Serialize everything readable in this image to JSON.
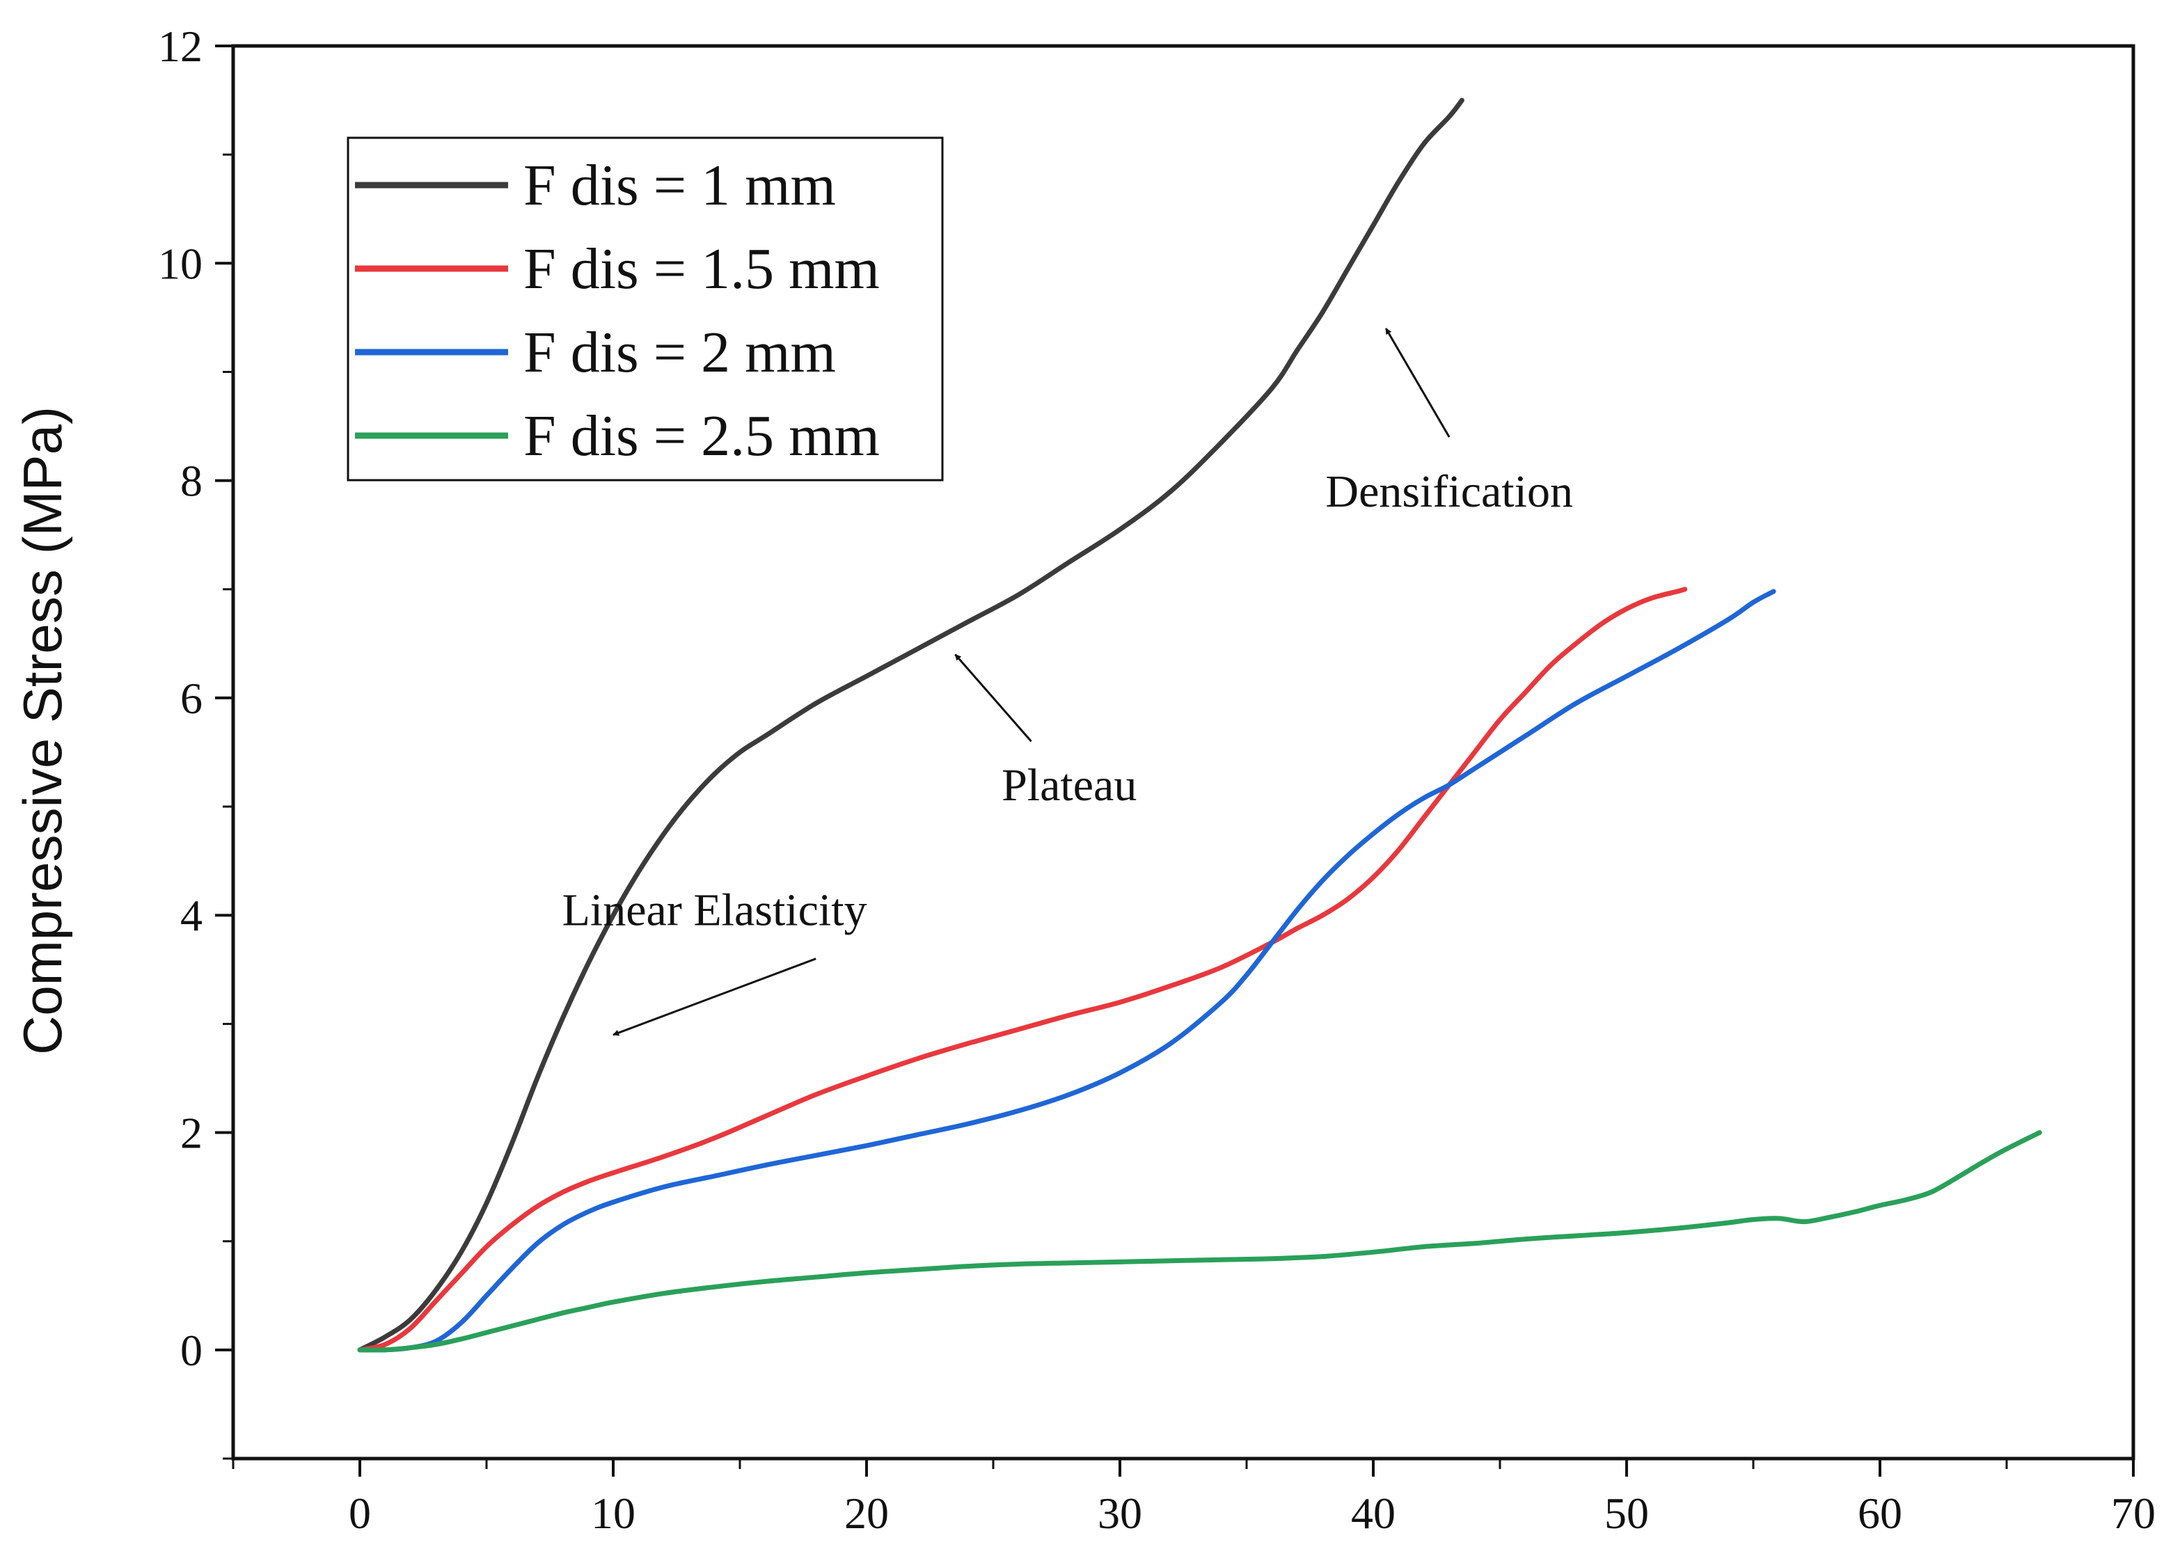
{
  "chart_data": {
    "type": "line",
    "title": "",
    "xlabel": "",
    "ylabel": "Compressive Stress (MPa)",
    "xlim": [
      -5,
      70
    ],
    "ylim": [
      -1,
      12
    ],
    "xticks": [
      0,
      10,
      20,
      30,
      40,
      50,
      60,
      70
    ],
    "yticks": [
      0,
      2,
      4,
      6,
      8,
      10,
      12
    ],
    "grid": false,
    "legend_position": "top-left",
    "series": [
      {
        "name": "F dis = 1 mm",
        "color": "#3b3b3b",
        "x": [
          0,
          1,
          2,
          3,
          4,
          5,
          6,
          7,
          8,
          9,
          10,
          11,
          12,
          13,
          14,
          15,
          16,
          18,
          20,
          22,
          24,
          26,
          28,
          30,
          32,
          34,
          36,
          37,
          38,
          39,
          40,
          41,
          42,
          43,
          43.5
        ],
        "y": [
          0,
          0.12,
          0.28,
          0.55,
          0.9,
          1.35,
          1.9,
          2.5,
          3.05,
          3.55,
          4.0,
          4.4,
          4.75,
          5.05,
          5.3,
          5.5,
          5.65,
          5.95,
          6.2,
          6.45,
          6.7,
          6.95,
          7.25,
          7.55,
          7.9,
          8.35,
          8.85,
          9.2,
          9.55,
          9.95,
          10.35,
          10.75,
          11.1,
          11.35,
          11.5
        ]
      },
      {
        "name": "F dis = 1.5 mm",
        "color": "#e8383d",
        "x": [
          0,
          1,
          2,
          3,
          4,
          5,
          6,
          7,
          8,
          9,
          10,
          12,
          14,
          16,
          18,
          20,
          22,
          24,
          26,
          28,
          30,
          32,
          34,
          36,
          37,
          38,
          39,
          40,
          41,
          42,
          43,
          44,
          45,
          46,
          47,
          48,
          49,
          50,
          51,
          52,
          52.3
        ],
        "y": [
          0,
          0.05,
          0.2,
          0.45,
          0.7,
          0.95,
          1.15,
          1.32,
          1.45,
          1.55,
          1.63,
          1.78,
          1.95,
          2.15,
          2.35,
          2.52,
          2.68,
          2.82,
          2.95,
          3.08,
          3.2,
          3.35,
          3.52,
          3.75,
          3.88,
          4.0,
          4.15,
          4.35,
          4.6,
          4.9,
          5.2,
          5.5,
          5.8,
          6.05,
          6.3,
          6.5,
          6.68,
          6.82,
          6.92,
          6.98,
          7.0
        ]
      },
      {
        "name": "F dis = 2 mm",
        "color": "#1f66d6",
        "x": [
          0,
          1,
          2,
          3,
          4,
          5,
          6,
          7,
          8,
          9,
          10,
          12,
          14,
          16,
          18,
          20,
          22,
          24,
          26,
          28,
          30,
          32,
          34,
          35,
          36,
          37,
          38,
          39,
          40,
          41,
          42,
          43,
          44,
          46,
          48,
          50,
          52,
          54,
          55,
          55.8
        ],
        "y": [
          0,
          0.0,
          0.02,
          0.08,
          0.25,
          0.5,
          0.75,
          0.98,
          1.15,
          1.27,
          1.36,
          1.5,
          1.6,
          1.7,
          1.79,
          1.88,
          1.98,
          2.08,
          2.2,
          2.35,
          2.55,
          2.82,
          3.2,
          3.45,
          3.75,
          4.05,
          4.32,
          4.55,
          4.75,
          4.93,
          5.08,
          5.2,
          5.35,
          5.65,
          5.95,
          6.2,
          6.45,
          6.72,
          6.88,
          6.98
        ]
      },
      {
        "name": "F dis = 2.5 mm",
        "color": "#2aa05a",
        "x": [
          0,
          1,
          2,
          3,
          4,
          5,
          6,
          7,
          8,
          9,
          10,
          12,
          14,
          16,
          18,
          20,
          22,
          24,
          26,
          28,
          30,
          32,
          34,
          36,
          38,
          40,
          42,
          44,
          46,
          48,
          50,
          52,
          54,
          55,
          56,
          57,
          58,
          59,
          60,
          61,
          62,
          63,
          64,
          65,
          66.3
        ],
        "y": [
          0,
          0.0,
          0.02,
          0.05,
          0.1,
          0.16,
          0.22,
          0.28,
          0.34,
          0.39,
          0.44,
          0.52,
          0.58,
          0.63,
          0.67,
          0.71,
          0.74,
          0.77,
          0.79,
          0.8,
          0.81,
          0.82,
          0.83,
          0.84,
          0.86,
          0.9,
          0.95,
          0.98,
          1.02,
          1.05,
          1.08,
          1.12,
          1.17,
          1.2,
          1.21,
          1.18,
          1.22,
          1.27,
          1.33,
          1.38,
          1.45,
          1.58,
          1.72,
          1.85,
          2.0
        ]
      }
    ],
    "annotations": [
      {
        "text": "Linear Elasticity",
        "label_x": 14,
        "label_y": 4.05,
        "tail_x": 18,
        "tail_y": 3.6,
        "head_x": 10,
        "head_y": 2.9
      },
      {
        "text": "Plateau",
        "label_x": 28,
        "label_y": 5.2,
        "tail_x": 26.5,
        "tail_y": 5.6,
        "head_x": 23.5,
        "head_y": 6.4
      },
      {
        "text": "Densification",
        "label_x": 43,
        "label_y": 7.9,
        "tail_x": 43,
        "tail_y": 8.4,
        "head_x": 40.5,
        "head_y": 9.4
      }
    ]
  }
}
